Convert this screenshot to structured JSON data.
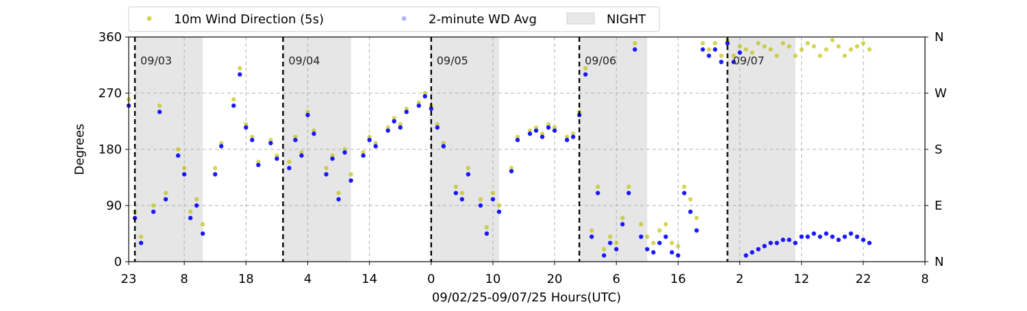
{
  "chart_data": {
    "type": "scatter",
    "xlabel": "09/02/25-09/07/25  Hours(UTC)",
    "ylabel": "Degrees",
    "ylim": [
      0,
      360
    ],
    "xlim": [
      0,
      129
    ],
    "x_tick_labels": [
      {
        "hour": 0,
        "label": "23"
      },
      {
        "hour": 9,
        "label": "8"
      },
      {
        "hour": 19,
        "label": "18"
      },
      {
        "hour": 29,
        "label": "4"
      },
      {
        "hour": 39,
        "label": "14"
      },
      {
        "hour": 49,
        "label": "0"
      },
      {
        "hour": 59,
        "label": "10"
      },
      {
        "hour": 69,
        "label": "20"
      },
      {
        "hour": 79,
        "label": "6"
      },
      {
        "hour": 89,
        "label": "16"
      },
      {
        "hour": 99,
        "label": "2"
      },
      {
        "hour": 109,
        "label": "12"
      },
      {
        "hour": 119,
        "label": "22"
      },
      {
        "hour": 129,
        "label": "8"
      }
    ],
    "y_ticks": [
      0,
      90,
      180,
      270,
      360
    ],
    "y2_tick_labels": [
      "N",
      "E",
      "S",
      "W",
      "N"
    ],
    "grid": true,
    "legend": {
      "placement": "top",
      "entries": [
        {
          "label": "10m Wind Direction (5s)",
          "color": "#bfbf00",
          "marker": "circle"
        },
        {
          "label": "2-minute WD Avg",
          "color": "#0000ff",
          "marker": "circle-faded"
        },
        {
          "label": "NIGHT",
          "color": "#e8e8e8",
          "marker": "patch"
        }
      ]
    },
    "night_periods": [
      [
        1,
        12
      ],
      [
        25,
        36
      ],
      [
        49,
        60
      ],
      [
        73,
        84
      ],
      [
        97,
        108
      ]
    ],
    "day_markers": [
      {
        "hour": 1,
        "label": "09/03"
      },
      {
        "hour": 25,
        "label": "09/04"
      },
      {
        "hour": 49,
        "label": "09/05"
      },
      {
        "hour": 73,
        "label": "09/06"
      },
      {
        "hour": 97,
        "label": "09/07"
      }
    ],
    "series": [
      {
        "name": "10m Wind Direction (5s)",
        "color": "#bfbf00",
        "x": [
          0,
          1,
          2,
          4,
          5,
          6,
          8,
          9,
          10,
          11,
          12,
          14,
          15,
          17,
          18,
          19,
          20,
          21,
          23,
          24,
          26,
          27,
          28,
          29,
          30,
          32,
          33,
          34,
          35,
          36,
          38,
          39,
          40,
          42,
          43,
          44,
          45,
          47,
          48,
          49,
          50,
          51,
          53,
          54,
          55,
          57,
          58,
          59,
          60,
          62,
          63,
          65,
          66,
          67,
          68,
          69,
          71,
          72,
          73,
          74,
          75,
          76,
          77,
          78,
          79,
          80,
          81,
          82,
          83,
          84,
          85,
          86,
          87,
          88,
          89,
          90,
          91,
          92,
          93,
          94,
          95,
          96,
          97,
          98,
          99,
          100,
          101,
          102,
          103,
          104,
          105,
          106,
          107,
          108,
          109,
          110,
          111,
          112,
          113,
          114,
          115,
          116,
          117,
          118,
          119,
          120
        ],
        "y": [
          260,
          80,
          40,
          90,
          250,
          110,
          180,
          150,
          80,
          100,
          60,
          150,
          190,
          260,
          310,
          220,
          200,
          160,
          195,
          170,
          160,
          200,
          175,
          240,
          210,
          150,
          170,
          110,
          180,
          140,
          175,
          200,
          190,
          215,
          230,
          220,
          245,
          255,
          270,
          250,
          220,
          190,
          120,
          110,
          150,
          100,
          55,
          110,
          90,
          150,
          200,
          210,
          215,
          205,
          220,
          215,
          200,
          205,
          240,
          310,
          50,
          120,
          20,
          40,
          30,
          70,
          120,
          350,
          60,
          40,
          30,
          50,
          60,
          30,
          25,
          120,
          100,
          70,
          350,
          340,
          350,
          330,
          355,
          330,
          345,
          340,
          335,
          350,
          345,
          340,
          330,
          350,
          345,
          330,
          340,
          350,
          345,
          330,
          340,
          355,
          345,
          330,
          340,
          345,
          350,
          340
        ]
      },
      {
        "name": "2-minute WD Avg",
        "color": "#0000ff",
        "x": [
          0,
          1,
          2,
          4,
          5,
          6,
          8,
          9,
          10,
          11,
          12,
          14,
          15,
          17,
          18,
          19,
          20,
          21,
          23,
          24,
          26,
          27,
          28,
          29,
          30,
          32,
          33,
          34,
          35,
          36,
          38,
          39,
          40,
          42,
          43,
          44,
          45,
          47,
          48,
          49,
          50,
          51,
          53,
          54,
          55,
          57,
          58,
          59,
          60,
          62,
          63,
          65,
          66,
          67,
          68,
          69,
          71,
          72,
          73,
          74,
          75,
          76,
          77,
          78,
          79,
          80,
          81,
          82,
          83,
          84,
          85,
          86,
          87,
          88,
          89,
          90,
          91,
          92,
          93,
          94,
          95,
          96,
          97,
          98,
          99,
          100,
          101,
          102,
          103,
          104,
          105,
          106,
          107,
          108,
          109,
          110,
          111,
          112,
          113,
          114,
          115,
          116,
          117,
          118,
          119,
          120
        ],
        "y": [
          250,
          70,
          30,
          80,
          240,
          100,
          170,
          140,
          70,
          90,
          45,
          140,
          185,
          250,
          300,
          215,
          195,
          155,
          190,
          165,
          150,
          195,
          170,
          235,
          205,
          140,
          165,
          100,
          175,
          130,
          170,
          195,
          185,
          210,
          225,
          215,
          240,
          250,
          265,
          245,
          215,
          185,
          110,
          100,
          140,
          90,
          45,
          100,
          80,
          145,
          195,
          205,
          210,
          200,
          215,
          210,
          195,
          200,
          235,
          300,
          40,
          110,
          10,
          30,
          20,
          60,
          110,
          340,
          40,
          20,
          15,
          30,
          40,
          15,
          10,
          110,
          80,
          50,
          340,
          330,
          340,
          320,
          350,
          320,
          335,
          10,
          15,
          20,
          25,
          30,
          30,
          35,
          35,
          30,
          40,
          40,
          45,
          40,
          45,
          40,
          35,
          40,
          45,
          40,
          35,
          30
        ]
      }
    ]
  }
}
